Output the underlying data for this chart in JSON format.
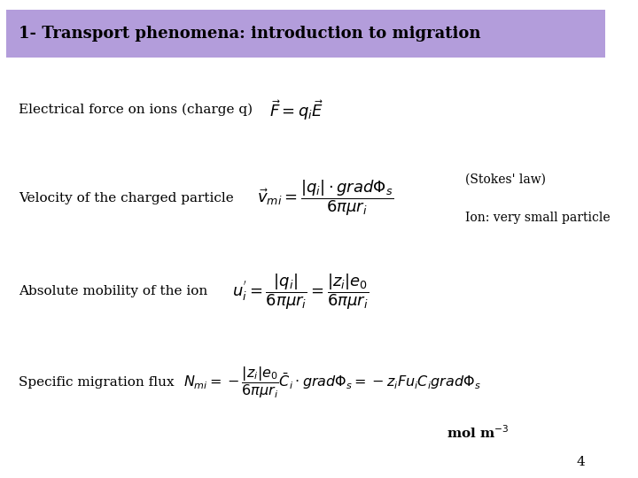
{
  "title": "1- Transport phenomena: introduction to migration",
  "title_bg_color": "#b39ddb",
  "title_text_color": "#000000",
  "bg_color": "#ffffff",
  "text_color": "#000000",
  "label1": "Electrical force on ions (charge q)",
  "formula1": "$\\vec{F} = q_i \\vec{E}$",
  "label2": "Velocity of the charged particle",
  "formula2": "$\\vec{v}_{mi} = \\dfrac{|q_i| \\cdot grad\\Phi_s}{6\\pi\\mu r_i}$",
  "note2a": "(Stokes' law)",
  "note2b": "Ion: very small particle",
  "label3": "Absolute mobility of the ion",
  "formula3": "$u_i^{'} = \\dfrac{|q_i|}{6\\pi\\mu r_i} = \\dfrac{|z_i|e_0}{6\\pi\\mu r_i}$",
  "label4": "Specific migration flux",
  "formula4": "$N_{mi} = -\\dfrac{|z_i|e_0}{6\\pi\\mu r_i}\\bar{C}_i \\cdot grad\\Phi_s = -z_i F u_i C_i grad\\Phi_s$",
  "unit_label": "mol m$^{-3}$",
  "page_number": "4"
}
